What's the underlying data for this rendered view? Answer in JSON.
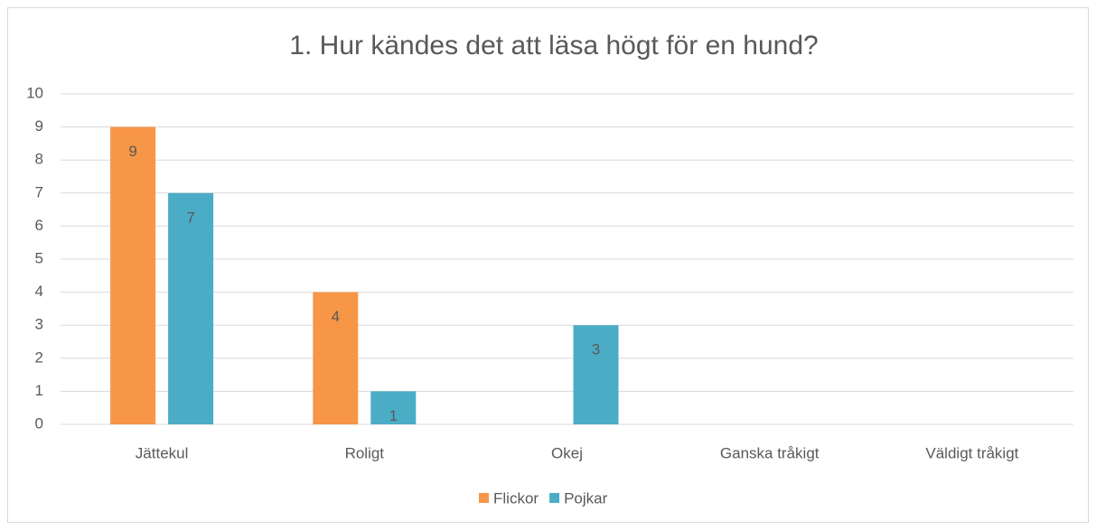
{
  "chart_data": {
    "type": "bar",
    "title": "1. Hur kändes det att läsa högt för en hund?",
    "categories": [
      "Jättekul",
      "Roligt",
      "Okej",
      "Ganska tråkigt",
      "Väldigt tråkigt"
    ],
    "series": [
      {
        "name": "Flickor",
        "color": "#f79646",
        "values": [
          9,
          4,
          null,
          null,
          null
        ]
      },
      {
        "name": "Pojkar",
        "color": "#4bacc6",
        "values": [
          7,
          1,
          3,
          null,
          null
        ]
      }
    ],
    "ylim": [
      0,
      10
    ],
    "yticks": [
      0,
      1,
      2,
      3,
      4,
      5,
      6,
      7,
      8,
      9,
      10
    ],
    "grid": true,
    "legend": "bottom"
  }
}
